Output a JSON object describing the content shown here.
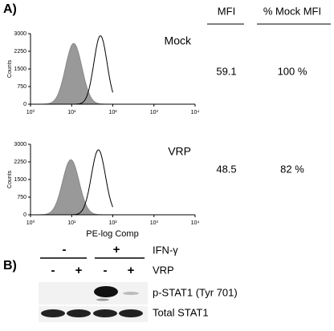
{
  "panel_a": {
    "label": "A)",
    "columns": [
      "MFI",
      "% Mock MFI"
    ],
    "xlim": [
      0,
      4
    ],
    "ylim": [
      0,
      3000
    ],
    "yticks": [
      0,
      750,
      1500,
      2250,
      3000
    ],
    "xticks": [
      {
        "value": 0,
        "label": "10⁰"
      },
      {
        "value": 1,
        "label": "10¹"
      },
      {
        "value": 2,
        "label": "10²"
      },
      {
        "value": 3,
        "label": "10³"
      },
      {
        "value": 4,
        "label": "10⁴"
      }
    ],
    "y_label": "Counts",
    "x_label": "PE-log Comp",
    "rows": [
      {
        "name": "Mock",
        "mfi": "59.1",
        "percent": "100 %"
      },
      {
        "name": "VRP",
        "mfi": "48.5",
        "percent": "82 %"
      }
    ]
  },
  "panel_b": {
    "label": "B)",
    "ifn": {
      "label": "IFN-γ",
      "marks": [
        "-",
        "+"
      ]
    },
    "vrp": {
      "label": "VRP",
      "marks": [
        "-",
        "+",
        "-",
        "+"
      ]
    },
    "blots": [
      "p-STAT1 (Tyr 701)",
      "Total STAT1"
    ]
  }
}
